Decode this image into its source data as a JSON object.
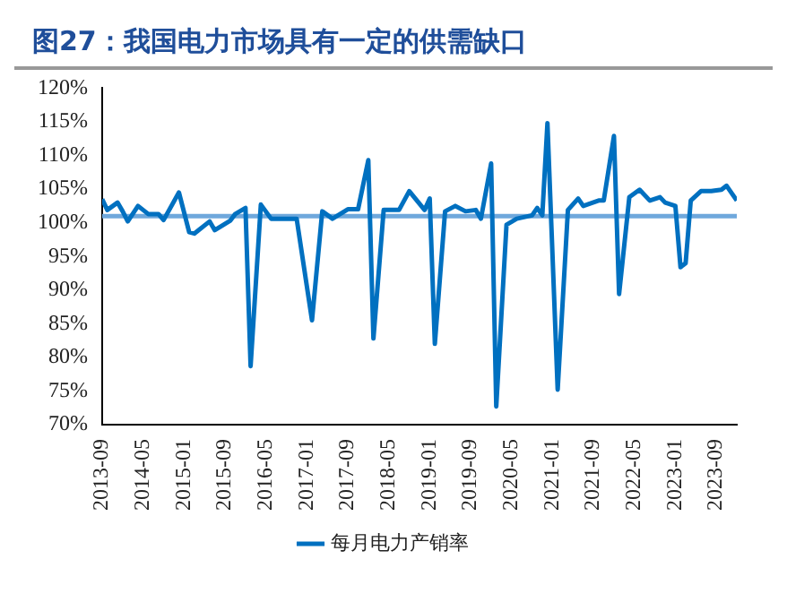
{
  "chart_data": {
    "type": "line",
    "title": "图27：我国电力市场具有一定的供需缺口",
    "x": [
      "2013-09",
      "2013-10",
      "2013-12",
      "2014-01",
      "2014-02",
      "2014-04",
      "2014-06",
      "2014-08",
      "2014-09",
      "2014-12",
      "2015-02",
      "2015-03",
      "2015-06",
      "2015-07",
      "2015-10",
      "2015-11",
      "2016-01",
      "2016-02",
      "2016-04",
      "2016-06",
      "2016-09",
      "2016-11",
      "2017-02",
      "2017-04",
      "2017-06",
      "2017-09",
      "2017-11",
      "2018-01",
      "2018-02",
      "2018-04",
      "2018-07",
      "2018-09",
      "2018-12",
      "2019-01",
      "2019-02",
      "2019-04",
      "2019-06",
      "2019-08",
      "2019-10",
      "2019-11",
      "2020-01",
      "2020-02",
      "2020-04",
      "2020-06",
      "2020-09",
      "2020-10",
      "2020-11",
      "2020-12",
      "2021-02",
      "2021-04",
      "2021-06",
      "2021-07",
      "2021-10",
      "2021-11",
      "2022-01",
      "2022-02",
      "2022-04",
      "2022-06",
      "2022-08",
      "2022-10",
      "2022-11",
      "2023-01",
      "2023-02",
      "2023-03",
      "2023-04",
      "2023-06",
      "2023-08",
      "2023-10",
      "2023-11",
      "2024-01"
    ],
    "series": [
      {
        "name": "每月电力产销率",
        "color": "#0070c0",
        "values": [
          103.5,
          101.9,
          103.0,
          101.7,
          100.2,
          102.5,
          101.3,
          101.3,
          100.4,
          104.5,
          98.6,
          98.4,
          100.2,
          98.9,
          100.3,
          101.3,
          102.2,
          78.7,
          102.7,
          100.6,
          100.6,
          100.6,
          85.5,
          101.7,
          100.6,
          102.0,
          102.0,
          109.3,
          82.8,
          101.9,
          101.9,
          104.7,
          101.9,
          103.6,
          82.0,
          101.7,
          102.5,
          101.7,
          101.9,
          100.6,
          108.8,
          72.7,
          99.7,
          100.6,
          101.1,
          102.2,
          101.1,
          114.8,
          75.2,
          101.9,
          103.6,
          102.5,
          103.3,
          103.3,
          112.9,
          89.4,
          103.8,
          104.9,
          103.3,
          103.8,
          103.0,
          102.5,
          93.4,
          94.0,
          103.3,
          104.7,
          104.7,
          104.9,
          105.5,
          103.3
        ]
      }
    ],
    "xlim": [
      "2013-09",
      "2024-01"
    ],
    "xticks": [
      "2013-09",
      "2014-05",
      "2015-01",
      "2015-09",
      "2016-05",
      "2017-01",
      "2017-09",
      "2018-05",
      "2019-01",
      "2019-09",
      "2020-05",
      "2021-01",
      "2021-09",
      "2022-05",
      "2023-01",
      "2023-09"
    ],
    "ylim": [
      70,
      120
    ],
    "yticks": [
      {
        "value": 70,
        "label": "70%"
      },
      {
        "value": 75,
        "label": "75%"
      },
      {
        "value": 80,
        "label": "80%"
      },
      {
        "value": 85,
        "label": "85%"
      },
      {
        "value": 90,
        "label": "90%"
      },
      {
        "value": 95,
        "label": "95%"
      },
      {
        "value": 100,
        "label": "100%"
      },
      {
        "value": 105,
        "label": "105%"
      },
      {
        "value": 110,
        "label": "110%"
      },
      {
        "value": 115,
        "label": "115%"
      },
      {
        "value": 120,
        "label": "120%"
      }
    ],
    "ref_lines": [
      {
        "axis": "y",
        "value": 101,
        "color": "#6fa8dc"
      }
    ],
    "grid": false,
    "legend": "bottom",
    "marker": "none",
    "line_style": "solid"
  }
}
